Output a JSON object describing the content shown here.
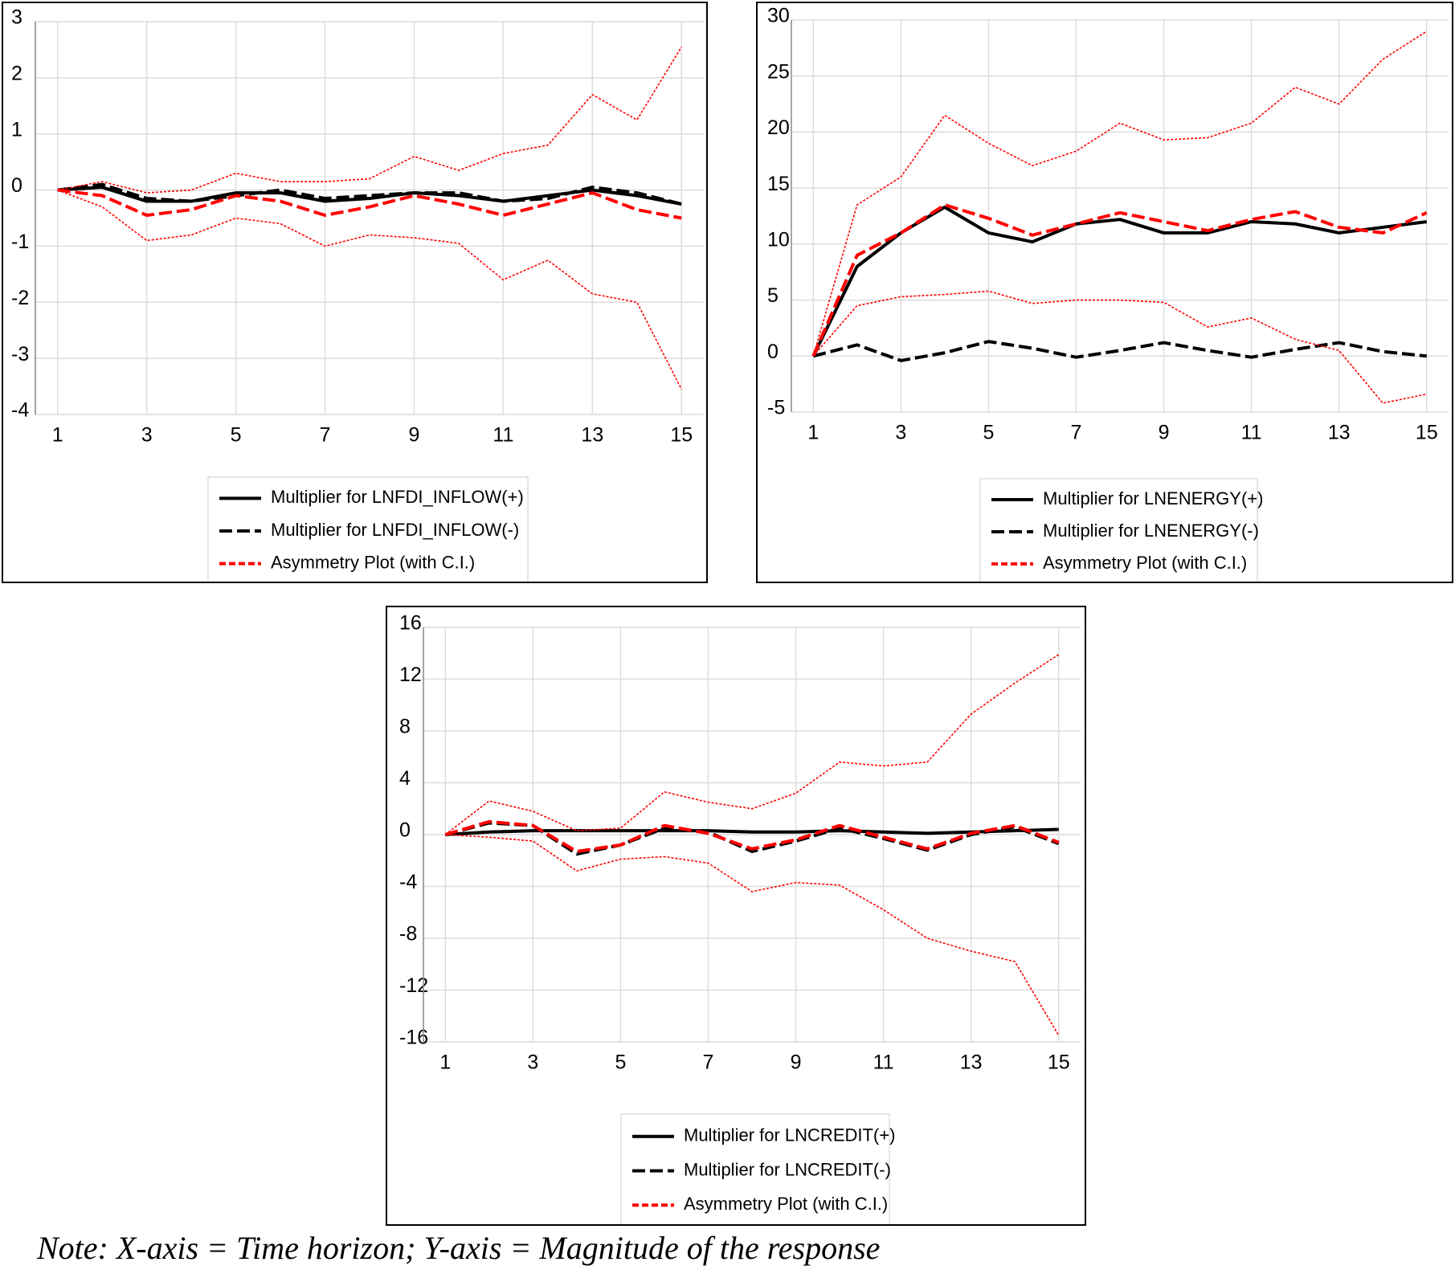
{
  "chart_data": [
    {
      "type": "line",
      "categories": [
        "1",
        null,
        "3",
        null,
        "5",
        null,
        "7",
        null,
        "9",
        null,
        "11",
        null,
        "13",
        null,
        "15"
      ],
      "ylim": [
        -4,
        3
      ],
      "yticks": [
        -4,
        -3,
        -2,
        -1,
        0,
        1,
        2,
        3
      ],
      "grid": true,
      "legend": "bottom",
      "series": [
        {
          "name": "Multiplier for LNFDI_INFLOW(+)",
          "color": "#000000",
          "style": "solid",
          "values": [
            0,
            0.05,
            -0.2,
            -0.2,
            -0.05,
            -0.05,
            -0.2,
            -0.15,
            -0.05,
            -0.1,
            -0.2,
            -0.1,
            0,
            -0.1,
            -0.25
          ]
        },
        {
          "name": "Multiplier for LNFDI_INFLOW(-)",
          "color": "#000000",
          "style": "dashed",
          "values": [
            0,
            0.1,
            -0.15,
            -0.2,
            -0.1,
            0,
            -0.15,
            -0.1,
            -0.05,
            -0.05,
            -0.2,
            -0.15,
            0.05,
            -0.05,
            -0.25
          ]
        },
        {
          "name": "Asymmetry Plot (with C.I.)",
          "color": "#ff0000",
          "style": "dashed",
          "values": [
            0,
            -0.1,
            -0.45,
            -0.35,
            -0.1,
            -0.2,
            -0.45,
            -0.3,
            -0.1,
            -0.25,
            -0.45,
            -0.25,
            -0.05,
            -0.35,
            -0.5
          ]
        },
        {
          "color": "#ff0000",
          "style": "dotted",
          "values": [
            0,
            0.15,
            -0.05,
            0,
            0.3,
            0.15,
            0.15,
            0.2,
            0.6,
            0.35,
            0.65,
            0.8,
            1.7,
            1.25,
            2.55
          ]
        },
        {
          "color": "#ff0000",
          "style": "dotted",
          "values": [
            0,
            -0.3,
            -0.9,
            -0.8,
            -0.5,
            -0.6,
            -1.0,
            -0.8,
            -0.85,
            -0.95,
            -1.6,
            -1.25,
            -1.85,
            -2.0,
            -3.55
          ]
        }
      ]
    },
    {
      "type": "line",
      "categories": [
        "1",
        null,
        "3",
        null,
        "5",
        null,
        "7",
        null,
        "9",
        null,
        "11",
        null,
        "13",
        null,
        "15"
      ],
      "ylim": [
        -5,
        30
      ],
      "yticks": [
        -5,
        0,
        5,
        10,
        15,
        20,
        25,
        30
      ],
      "grid": true,
      "legend": "bottom",
      "series": [
        {
          "name": "Multiplier for LNENERGY(+)",
          "color": "#000000",
          "style": "solid",
          "values": [
            0,
            8,
            11,
            13.3,
            11,
            10.2,
            11.8,
            12.2,
            11,
            11,
            12,
            11.8,
            11,
            11.5,
            12
          ]
        },
        {
          "name": "Multiplier for LNENERGY(-)",
          "color": "#000000",
          "style": "dashed",
          "values": [
            0,
            1,
            -0.4,
            0.3,
            1.3,
            0.7,
            -0.1,
            0.5,
            1.2,
            0.5,
            -0.1,
            0.6,
            1.2,
            0.4,
            0
          ]
        },
        {
          "name": "Asymmetry Plot (with C.I.)",
          "color": "#ff0000",
          "style": "dashed",
          "values": [
            0,
            9,
            11,
            13.5,
            12.3,
            10.8,
            11.8,
            12.8,
            12,
            11.2,
            12.2,
            12.9,
            11.5,
            11,
            12.8
          ]
        },
        {
          "color": "#ff0000",
          "style": "dotted",
          "values": [
            0,
            13.5,
            16,
            21.5,
            19,
            17,
            18.3,
            20.8,
            19.3,
            19.5,
            20.8,
            24,
            22.5,
            26.5,
            29
          ]
        },
        {
          "color": "#ff0000",
          "style": "dotted",
          "values": [
            0,
            4.5,
            5.3,
            5.5,
            5.8,
            4.7,
            5,
            5,
            4.8,
            2.6,
            3.4,
            1.5,
            0.5,
            -4.2,
            -3.4
          ]
        }
      ]
    },
    {
      "type": "line",
      "categories": [
        "1",
        null,
        "3",
        null,
        "5",
        null,
        "7",
        null,
        "9",
        null,
        "11",
        null,
        "13",
        null,
        "15"
      ],
      "ylim": [
        -16,
        16
      ],
      "yticks": [
        -16,
        -12,
        -8,
        -4,
        0,
        4,
        8,
        12,
        16
      ],
      "grid": true,
      "legend": "bottom",
      "series": [
        {
          "name": "Multiplier for LNCREDIT(+)",
          "color": "#000000",
          "style": "solid",
          "values": [
            0,
            0.2,
            0.3,
            0.3,
            0.3,
            0.3,
            0.3,
            0.2,
            0.2,
            0.3,
            0.2,
            0.1,
            0.2,
            0.3,
            0.4
          ]
        },
        {
          "name": "Multiplier for LNCREDIT(-)",
          "color": "#000000",
          "style": "dashed",
          "values": [
            0,
            0.9,
            0.7,
            -1.5,
            -0.8,
            0.5,
            0.2,
            -1.3,
            -0.5,
            0.5,
            -0.3,
            -1.2,
            0,
            0.6,
            -0.7
          ]
        },
        {
          "name": "Asymmetry Plot (with C.I.)",
          "color": "#ff0000",
          "style": "dashed",
          "values": [
            0,
            1.0,
            0.7,
            -1.3,
            -0.8,
            0.7,
            0.1,
            -1.1,
            -0.4,
            0.7,
            -0.2,
            -1.1,
            0.1,
            0.7,
            -0.6
          ]
        },
        {
          "color": "#ff0000",
          "style": "dotted",
          "values": [
            0,
            2.6,
            1.8,
            0.3,
            0.5,
            3.3,
            2.5,
            2.0,
            3.2,
            5.6,
            5.3,
            5.6,
            9.3,
            11.7,
            13.9
          ]
        },
        {
          "color": "#ff0000",
          "style": "dotted",
          "values": [
            0,
            -0.2,
            -0.5,
            -2.8,
            -1.9,
            -1.7,
            -2.2,
            -4.4,
            -3.7,
            -3.9,
            -5.8,
            -8.0,
            -9.0,
            -9.8,
            -15.5
          ]
        }
      ]
    }
  ],
  "note": "Note: X-axis = Time horizon; Y-axis = Magnitude of the response"
}
